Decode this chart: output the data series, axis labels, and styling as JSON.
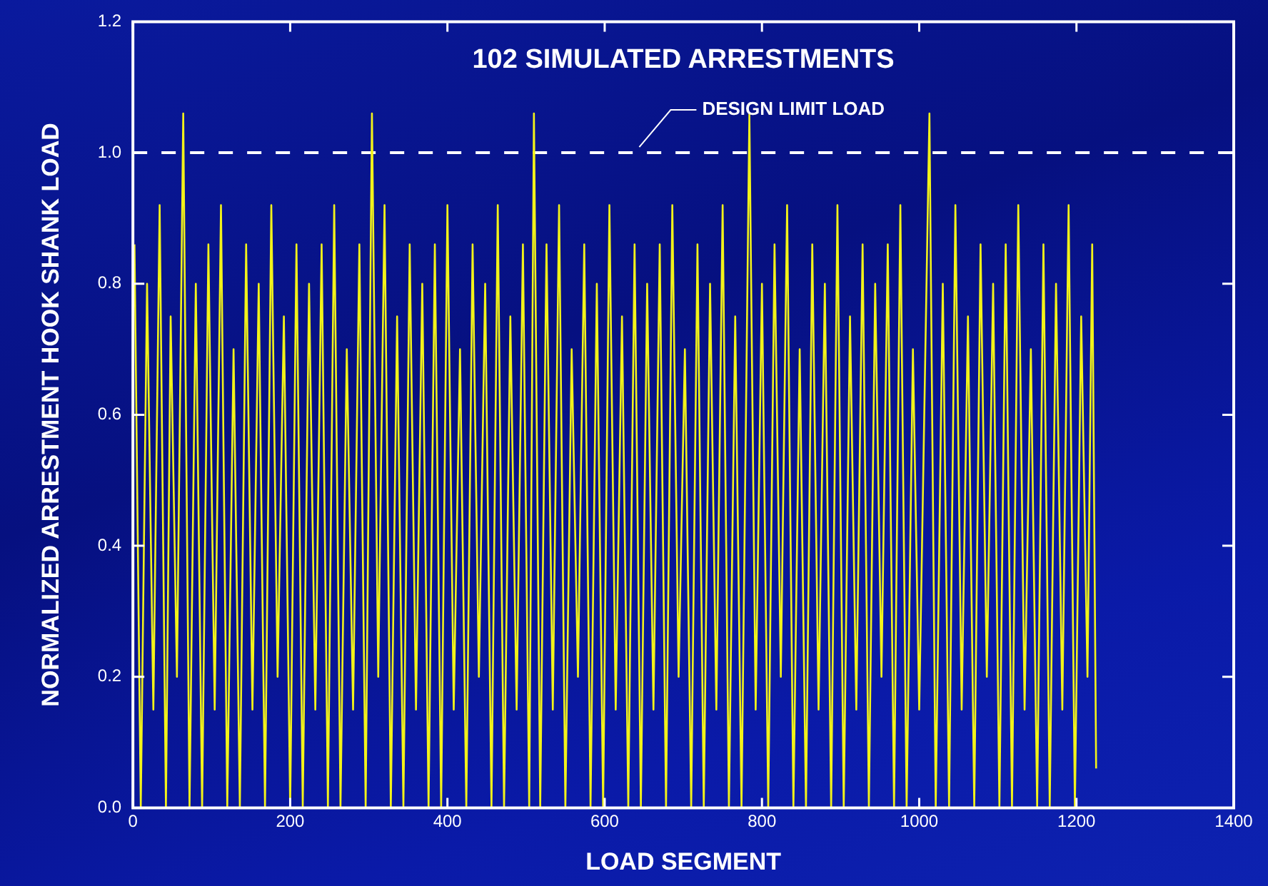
{
  "chart_data": {
    "type": "line",
    "title": "102 SIMULATED ARRESTMENTS",
    "xlabel": "LOAD SEGMENT",
    "ylabel": "NORMALIZED ARRESTMENT HOOK SHANK LOAD",
    "xlim": [
      0,
      1400
    ],
    "xticks": [
      0,
      200,
      400,
      600,
      800,
      1000,
      1200,
      1400
    ],
    "ylim": [
      0,
      1.2
    ],
    "yticks": [
      {
        "value": 0,
        "label": "0.0"
      },
      0.2,
      0.4,
      0.6,
      0.8,
      {
        "value": 1,
        "label": "1.0"
      },
      1.2
    ],
    "grid": false,
    "legend": false,
    "marker": "none",
    "line_style": "solid",
    "ref_lines": [
      {
        "axis": "y",
        "value": 1.0,
        "label": "DESIGN LIMIT LOAD",
        "color": "#ffffff",
        "line_style": "dashed"
      }
    ],
    "series": [
      {
        "color": "#f2f21a",
        "x": [
          2,
          10,
          18,
          26,
          34,
          42,
          48,
          56,
          64,
          72,
          80,
          88,
          96,
          104,
          112,
          120,
          128,
          136,
          144,
          152,
          160,
          168,
          176,
          184,
          192,
          200,
          208,
          216,
          224,
          232,
          240,
          248,
          256,
          264,
          272,
          280,
          288,
          296,
          304,
          312,
          320,
          328,
          336,
          344,
          352,
          360,
          368,
          376,
          384,
          392,
          400,
          408,
          416,
          424,
          432,
          440,
          448,
          456,
          464,
          472,
          480,
          488,
          496,
          504,
          510,
          518,
          526,
          534,
          542,
          550,
          558,
          566,
          574,
          582,
          590,
          598,
          606,
          614,
          622,
          630,
          638,
          646,
          654,
          662,
          670,
          678,
          686,
          694,
          702,
          710,
          718,
          726,
          734,
          742,
          750,
          758,
          766,
          774,
          784,
          792,
          800,
          808,
          816,
          824,
          832,
          840,
          848,
          856,
          864,
          872,
          880,
          888,
          896,
          904,
          912,
          920,
          928,
          936,
          944,
          952,
          960,
          968,
          976,
          984,
          992,
          1000,
          1013,
          1021,
          1030,
          1038,
          1046,
          1054,
          1062,
          1070,
          1078,
          1086,
          1094,
          1102,
          1110,
          1118,
          1126,
          1134,
          1142,
          1150,
          1158,
          1166,
          1174,
          1182,
          1190,
          1198,
          1206,
          1214,
          1220,
          1225
        ],
        "values": [
          0.86,
          0,
          0.8,
          0.15,
          0.92,
          0,
          0.75,
          0.2,
          1.06,
          0,
          0.8,
          0,
          0.86,
          0.15,
          0.92,
          0,
          0.7,
          0,
          0.86,
          0.15,
          0.8,
          0,
          0.92,
          0.2,
          0.75,
          0,
          0.86,
          0,
          0.8,
          0.15,
          0.86,
          0,
          0.92,
          0,
          0.7,
          0.15,
          0.86,
          0,
          1.06,
          0.2,
          0.92,
          0,
          0.75,
          0,
          0.86,
          0.15,
          0.8,
          0,
          0.86,
          0,
          0.92,
          0.15,
          0.7,
          0,
          0.86,
          0.2,
          0.8,
          0,
          0.92,
          0,
          0.75,
          0.15,
          0.86,
          0,
          1.06,
          0,
          0.86,
          0.15,
          0.92,
          0,
          0.7,
          0.2,
          0.86,
          0,
          0.8,
          0,
          0.92,
          0.15,
          0.75,
          0,
          0.86,
          0,
          0.8,
          0.15,
          0.86,
          0,
          0.92,
          0.2,
          0.7,
          0,
          0.86,
          0,
          0.8,
          0.15,
          0.92,
          0,
          0.75,
          0,
          1.06,
          0.15,
          0.8,
          0,
          0.86,
          0.2,
          0.92,
          0,
          0.7,
          0,
          0.86,
          0.15,
          0.8,
          0,
          0.92,
          0,
          0.75,
          0.15,
          0.86,
          0,
          0.8,
          0.2,
          0.86,
          0,
          0.92,
          0,
          0.7,
          0.15,
          1.06,
          0,
          0.8,
          0,
          0.92,
          0.15,
          0.75,
          0,
          0.86,
          0.2,
          0.8,
          0,
          0.86,
          0,
          0.92,
          0.15,
          0.7,
          0,
          0.86,
          0,
          0.8,
          0.15,
          0.92,
          0,
          0.75,
          0.2,
          0.86,
          0.06
        ]
      }
    ]
  }
}
